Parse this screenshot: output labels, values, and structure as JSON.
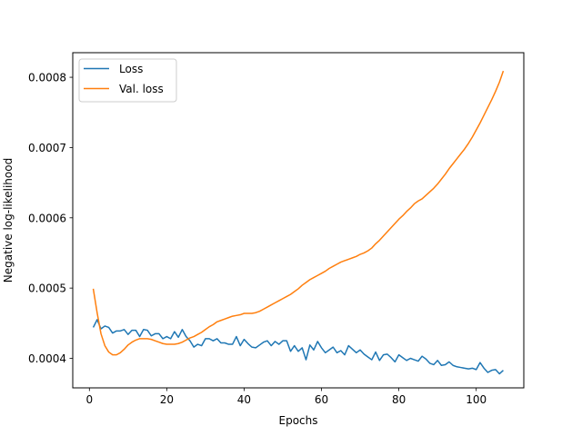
{
  "chart_data": {
    "type": "line",
    "title": "",
    "xlabel": "Epochs",
    "ylabel": "Negative log-likelihood",
    "xlim": [
      -4.3,
      112.3
    ],
    "ylim": [
      0.000358,
      0.000835
    ],
    "xticks": [
      0,
      20,
      40,
      60,
      80,
      100
    ],
    "xtick_labels": [
      "0",
      "20",
      "40",
      "60",
      "80",
      "100"
    ],
    "yticks": [
      0.0004,
      0.0005,
      0.0006,
      0.0007,
      0.0008
    ],
    "ytick_labels": [
      "0.0004",
      "0.0005",
      "0.0006",
      "0.0007",
      "0.0008"
    ],
    "grid": false,
    "legend_position": "top-left",
    "series": [
      {
        "name": "Loss",
        "color": "#1f77b4",
        "x": [
          1,
          2,
          3,
          4,
          5,
          6,
          7,
          8,
          9,
          10,
          11,
          12,
          13,
          14,
          15,
          16,
          17,
          18,
          19,
          20,
          21,
          22,
          23,
          24,
          25,
          26,
          27,
          28,
          29,
          30,
          31,
          32,
          33,
          34,
          35,
          36,
          37,
          38,
          39,
          40,
          41,
          42,
          43,
          44,
          45,
          46,
          47,
          48,
          49,
          50,
          51,
          52,
          53,
          54,
          55,
          56,
          57,
          58,
          59,
          60,
          61,
          62,
          63,
          64,
          65,
          66,
          67,
          68,
          69,
          70,
          71,
          72,
          73,
          74,
          75,
          76,
          77,
          78,
          79,
          80,
          81,
          82,
          83,
          84,
          85,
          86,
          87,
          88,
          89,
          90,
          91,
          92,
          93,
          94,
          95,
          96,
          97,
          98,
          99,
          100,
          101,
          102,
          103,
          104,
          105,
          106,
          107
        ],
        "values": [
          0.000444,
          0.000455,
          0.000442,
          0.000446,
          0.000444,
          0.000436,
          0.000439,
          0.000439,
          0.000441,
          0.000434,
          0.00044,
          0.00044,
          0.000431,
          0.000441,
          0.00044,
          0.000432,
          0.000435,
          0.000435,
          0.000428,
          0.000431,
          0.000428,
          0.000438,
          0.00043,
          0.000441,
          0.000431,
          0.000425,
          0.000416,
          0.00042,
          0.000418,
          0.000428,
          0.000428,
          0.000425,
          0.000428,
          0.000422,
          0.000422,
          0.00042,
          0.00042,
          0.000431,
          0.000418,
          0.000427,
          0.000421,
          0.000416,
          0.000415,
          0.000419,
          0.000423,
          0.000425,
          0.000418,
          0.000424,
          0.00042,
          0.000425,
          0.000425,
          0.00041,
          0.000418,
          0.00041,
          0.000415,
          0.000398,
          0.000419,
          0.000412,
          0.000424,
          0.000415,
          0.000408,
          0.000412,
          0.000416,
          0.000408,
          0.000411,
          0.000405,
          0.000418,
          0.000413,
          0.000408,
          0.000412,
          0.000406,
          0.000402,
          0.000398,
          0.000409,
          0.000397,
          0.000405,
          0.000406,
          0.000401,
          0.000395,
          0.000405,
          0.000401,
          0.000397,
          0.0004,
          0.000398,
          0.000396,
          0.000403,
          0.000399,
          0.000393,
          0.000391,
          0.000397,
          0.00039,
          0.000391,
          0.000395,
          0.00039,
          0.000388,
          0.000387,
          0.000386,
          0.000385,
          0.000386,
          0.000384,
          0.000394,
          0.000386,
          0.00038,
          0.000383,
          0.000384,
          0.000378,
          0.000383
        ]
      },
      {
        "name": "Val. loss",
        "color": "#ff7f0e",
        "x": [
          1,
          2,
          3,
          4,
          5,
          6,
          7,
          8,
          9,
          10,
          11,
          12,
          13,
          14,
          15,
          16,
          17,
          18,
          19,
          20,
          21,
          22,
          23,
          24,
          25,
          26,
          27,
          28,
          29,
          30,
          31,
          32,
          33,
          34,
          35,
          36,
          37,
          38,
          39,
          40,
          41,
          42,
          43,
          44,
          45,
          46,
          47,
          48,
          49,
          50,
          51,
          52,
          53,
          54,
          55,
          56,
          57,
          58,
          59,
          60,
          61,
          62,
          63,
          64,
          65,
          66,
          67,
          68,
          69,
          70,
          71,
          72,
          73,
          74,
          75,
          76,
          77,
          78,
          79,
          80,
          81,
          82,
          83,
          84,
          85,
          86,
          87,
          88,
          89,
          90,
          91,
          92,
          93,
          94,
          95,
          96,
          97,
          98,
          99,
          100,
          101,
          102,
          103,
          104,
          105,
          106,
          107
        ],
        "values": [
          0.000499,
          0.000465,
          0.000435,
          0.000418,
          0.000409,
          0.000405,
          0.000405,
          0.000408,
          0.000413,
          0.000419,
          0.000423,
          0.000426,
          0.000428,
          0.000428,
          0.000428,
          0.000427,
          0.000425,
          0.000423,
          0.000421,
          0.00042,
          0.00042,
          0.00042,
          0.000421,
          0.000423,
          0.000426,
          0.000429,
          0.000431,
          0.000434,
          0.000437,
          0.000441,
          0.000445,
          0.000448,
          0.000452,
          0.000454,
          0.000456,
          0.000458,
          0.00046,
          0.000461,
          0.000462,
          0.000464,
          0.000464,
          0.000464,
          0.000465,
          0.000467,
          0.00047,
          0.000473,
          0.000476,
          0.000479,
          0.000482,
          0.000485,
          0.000488,
          0.000491,
          0.000495,
          0.000499,
          0.000504,
          0.000508,
          0.000512,
          0.000515,
          0.000518,
          0.000521,
          0.000524,
          0.000528,
          0.000531,
          0.000534,
          0.000537,
          0.000539,
          0.000541,
          0.000543,
          0.000545,
          0.000548,
          0.00055,
          0.000553,
          0.000557,
          0.000563,
          0.000568,
          0.000574,
          0.00058,
          0.000586,
          0.000592,
          0.000598,
          0.000603,
          0.000609,
          0.000614,
          0.00062,
          0.000624,
          0.000627,
          0.000632,
          0.000637,
          0.000642,
          0.000648,
          0.000655,
          0.000662,
          0.00067,
          0.000677,
          0.000684,
          0.000691,
          0.000698,
          0.000706,
          0.000715,
          0.000725,
          0.000735,
          0.000746,
          0.000757,
          0.000768,
          0.00078,
          0.000793,
          0.000809
        ]
      }
    ]
  }
}
